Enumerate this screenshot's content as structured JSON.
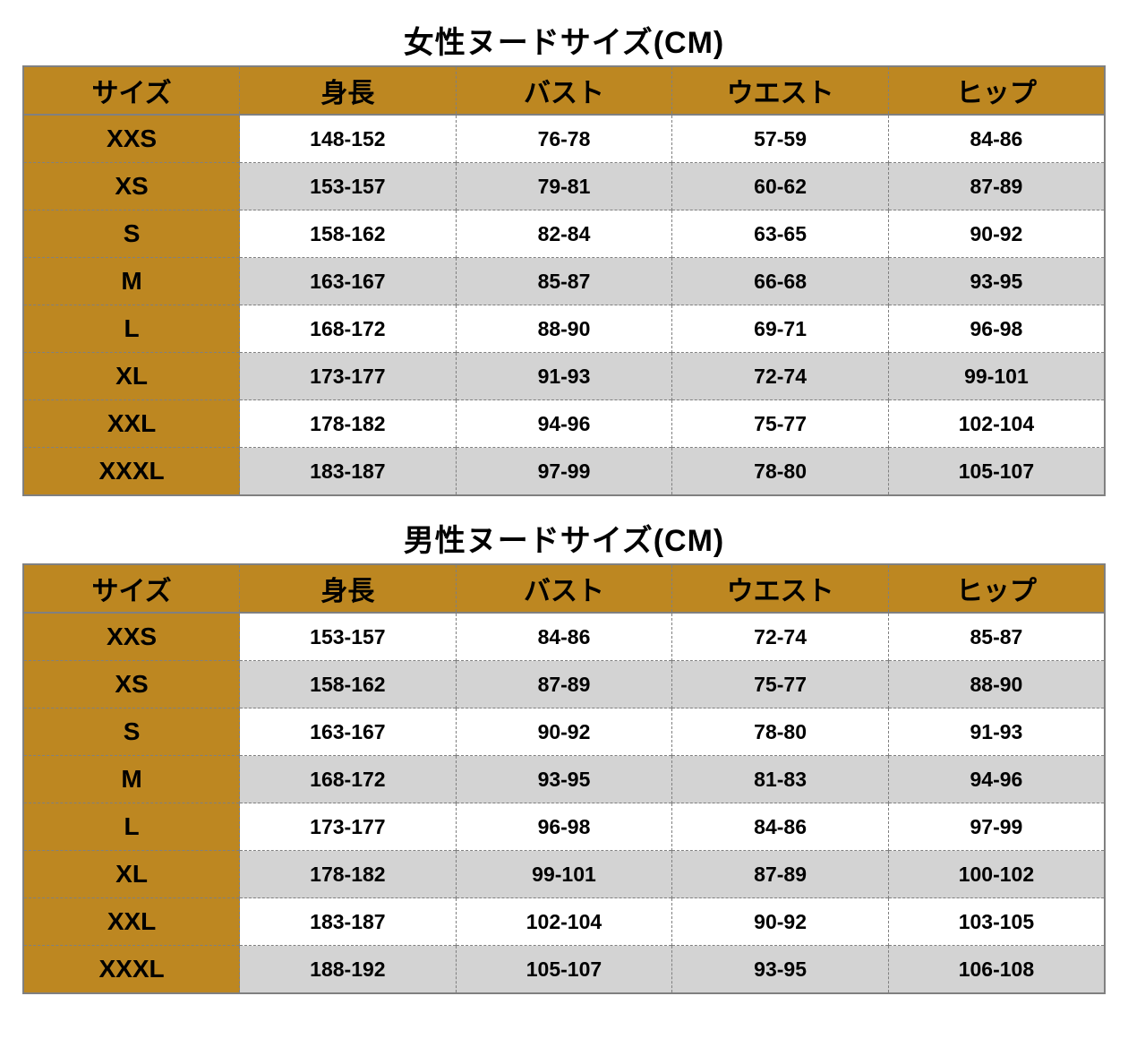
{
  "colors": {
    "header_bg": "#bd8721",
    "row_odd_bg": "#ffffff",
    "row_even_bg": "#d3d3d3",
    "border_solid": "#808080",
    "border_dashed": "#808080",
    "text": "#000000"
  },
  "typography": {
    "title_fontsize": 34,
    "header_fontsize": 30,
    "sizecol_fontsize": 28,
    "cell_fontsize": 23,
    "title_weight": 900,
    "header_weight": 900,
    "cell_weight": 600
  },
  "tables": [
    {
      "title": "女性ヌードサイズ(CM)",
      "columns": [
        "サイズ",
        "身長",
        "バスト",
        "ウエスト",
        "ヒップ"
      ],
      "rows": [
        [
          "XXS",
          "148-152",
          "76-78",
          "57-59",
          "84-86"
        ],
        [
          "XS",
          "153-157",
          "79-81",
          "60-62",
          "87-89"
        ],
        [
          "S",
          "158-162",
          "82-84",
          "63-65",
          "90-92"
        ],
        [
          "M",
          "163-167",
          "85-87",
          "66-68",
          "93-95"
        ],
        [
          "L",
          "168-172",
          "88-90",
          "69-71",
          "96-98"
        ],
        [
          "XL",
          "173-177",
          "91-93",
          "72-74",
          "99-101"
        ],
        [
          "XXL",
          "178-182",
          "94-96",
          "75-77",
          "102-104"
        ],
        [
          "XXXL",
          "183-187",
          "97-99",
          "78-80",
          "105-107"
        ]
      ]
    },
    {
      "title": "男性ヌードサイズ(CM)",
      "columns": [
        "サイズ",
        "身長",
        "バスト",
        "ウエスト",
        "ヒップ"
      ],
      "rows": [
        [
          "XXS",
          "153-157",
          "84-86",
          "72-74",
          "85-87"
        ],
        [
          "XS",
          "158-162",
          "87-89",
          "75-77",
          "88-90"
        ],
        [
          "S",
          "163-167",
          "90-92",
          "78-80",
          "91-93"
        ],
        [
          "M",
          "168-172",
          "93-95",
          "81-83",
          "94-96"
        ],
        [
          "L",
          "173-177",
          "96-98",
          "84-86",
          "97-99"
        ],
        [
          "XL",
          "178-182",
          "99-101",
          "87-89",
          "100-102"
        ],
        [
          "XXL",
          "183-187",
          "102-104",
          "90-92",
          "103-105"
        ],
        [
          "XXXL",
          "188-192",
          "105-107",
          "93-95",
          "106-108"
        ]
      ]
    }
  ]
}
